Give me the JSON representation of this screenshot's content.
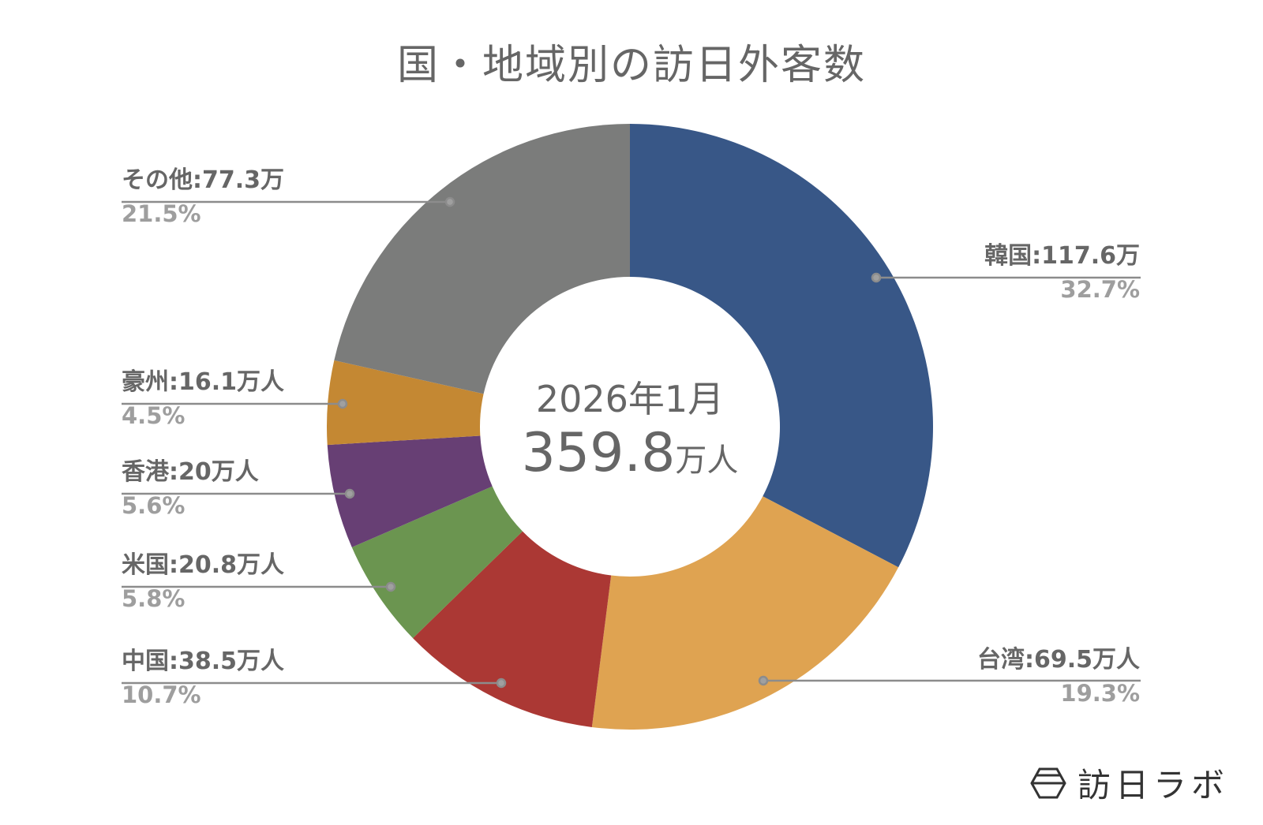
{
  "title": "国・地域別の訪日外客数",
  "center": {
    "date": "2026年1月",
    "total_number": "359.8",
    "total_unit": "万人"
  },
  "labels": {
    "korea": {
      "name": "韓国:117.6万",
      "pct": "32.7%"
    },
    "taiwan": {
      "name": "台湾:69.5万人",
      "pct": "19.3%"
    },
    "china": {
      "name": "中国:38.5万人",
      "pct": "10.7%"
    },
    "usa": {
      "name": "米国:20.8万人",
      "pct": "5.8%"
    },
    "hongkong": {
      "name": "香港:20万人",
      "pct": "5.6%"
    },
    "australia": {
      "name": "豪州:16.1万人",
      "pct": "4.5%"
    },
    "other": {
      "name": "その他:77.3万",
      "pct": "21.5%"
    }
  },
  "logo": {
    "text": "訪日ラボ"
  },
  "chart_data": {
    "type": "pie",
    "variant": "donut",
    "title": "国・地域別の訪日外客数",
    "center_text": [
      "2026年1月",
      "359.8万人"
    ],
    "unit": "万人",
    "total": 359.8,
    "start_angle": "12 o'clock, clockwise",
    "categories": [
      "韓国",
      "台湾",
      "中国",
      "米国",
      "香港",
      "豪州",
      "その他"
    ],
    "values": [
      117.6,
      69.5,
      38.5,
      20.8,
      20.0,
      16.1,
      77.3
    ],
    "percentages": [
      32.7,
      19.3,
      10.7,
      5.8,
      5.6,
      4.5,
      21.5
    ],
    "colors": [
      "#385787",
      "#dfa351",
      "#ab3834",
      "#6b9550",
      "#673f74",
      "#c48833",
      "#7b7c7b"
    ],
    "legend": "none (callout labels beside slices)"
  }
}
